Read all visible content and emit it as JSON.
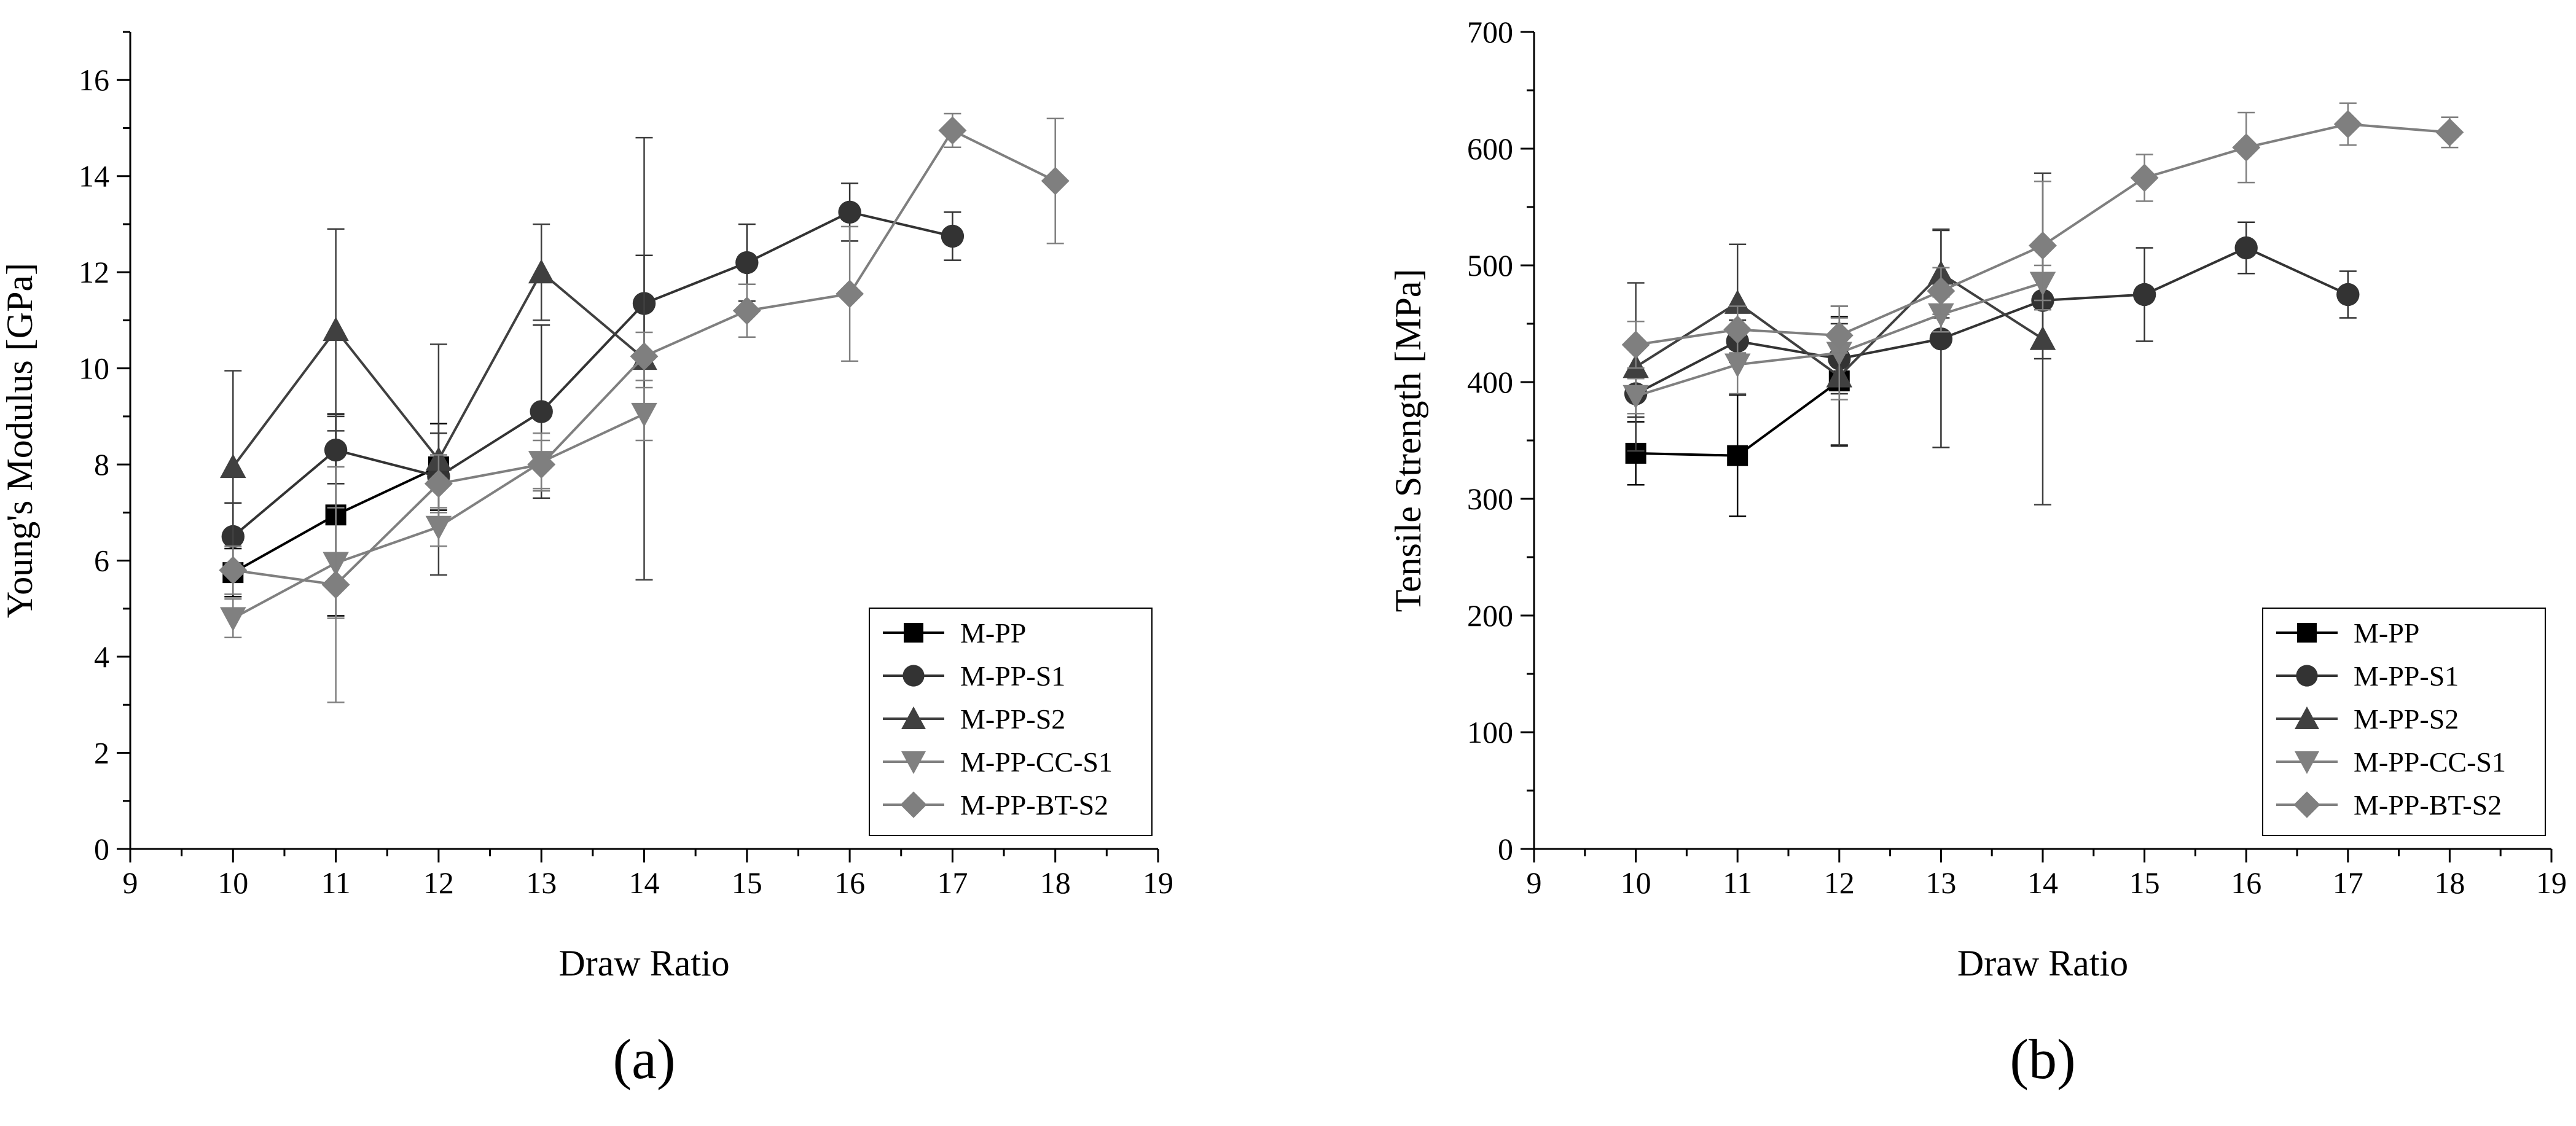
{
  "chart_data": [
    {
      "type": "line",
      "panel_label": "(a)",
      "xlabel": "Draw Ratio",
      "ylabel": "Young's Modulus [GPa]",
      "xlim": [
        9,
        19
      ],
      "ylim": [
        0,
        17
      ],
      "xticks": [
        9,
        10,
        11,
        12,
        13,
        14,
        15,
        16,
        17,
        18,
        19
      ],
      "yticks": [
        0,
        2,
        4,
        6,
        8,
        10,
        12,
        14,
        16
      ],
      "legend_position": "bottom-right",
      "series": [
        {
          "name": "M-PP",
          "marker": "square",
          "color": "#000000",
          "x": [
            10,
            11,
            12
          ],
          "values": [
            5.75,
            6.95,
            7.95
          ],
          "errors": [
            0.5,
            2.1,
            0.9
          ]
        },
        {
          "name": "M-PP-S1",
          "marker": "circle",
          "color": "#333333",
          "x": [
            10,
            11,
            12,
            13,
            14,
            15,
            16,
            17
          ],
          "values": [
            6.5,
            8.3,
            7.75,
            9.1,
            11.35,
            12.2,
            13.25,
            12.75
          ],
          "errors": [
            0.7,
            0.7,
            0.9,
            1.8,
            1.0,
            0.8,
            0.6,
            0.5
          ]
        },
        {
          "name": "M-PP-S2",
          "marker": "triangle-up",
          "color": "#404040",
          "x": [
            10,
            11,
            12,
            13,
            14
          ],
          "values": [
            7.95,
            10.8,
            8.1,
            12.0,
            10.2
          ],
          "errors": [
            2.0,
            2.1,
            2.4,
            1.0,
            4.6
          ]
        },
        {
          "name": "M-PP-CC-S1",
          "marker": "triangle-down",
          "color": "#808080",
          "x": [
            10,
            11,
            12,
            13,
            14
          ],
          "values": [
            4.8,
            5.95,
            6.7,
            8.05,
            9.05
          ],
          "errors": [
            0.4,
            1.15,
            0.4,
            0.6,
            0.55
          ]
        },
        {
          "name": "M-PP-BT-S2",
          "marker": "diamond",
          "color": "#7f7f7f",
          "x": [
            10,
            11,
            12,
            13,
            14,
            15,
            16,
            17,
            18
          ],
          "values": [
            5.8,
            5.5,
            7.6,
            8.0,
            10.25,
            11.2,
            11.55,
            14.95,
            13.9
          ],
          "errors": [
            0.5,
            2.45,
            0.6,
            0.5,
            0.5,
            0.55,
            1.4,
            0.35,
            1.3
          ]
        }
      ]
    },
    {
      "type": "line",
      "panel_label": "(b)",
      "xlabel": "Draw Ratio",
      "ylabel": "Tensile Strength [MPa]",
      "xlim": [
        9,
        19
      ],
      "ylim": [
        0,
        700
      ],
      "xticks": [
        9,
        10,
        11,
        12,
        13,
        14,
        15,
        16,
        17,
        18,
        19
      ],
      "yticks": [
        0,
        100,
        200,
        300,
        400,
        500,
        600,
        700
      ],
      "legend_position": "bottom-right",
      "series": [
        {
          "name": "M-PP",
          "marker": "square",
          "color": "#000000",
          "x": [
            10,
            11,
            12
          ],
          "values": [
            339,
            337,
            401
          ],
          "errors": [
            27,
            52,
            55
          ]
        },
        {
          "name": "M-PP-S1",
          "marker": "circle",
          "color": "#333333",
          "x": [
            10,
            11,
            12,
            13,
            14,
            15,
            16,
            17
          ],
          "values": [
            390,
            435,
            420,
            437,
            470,
            475,
            515,
            475
          ],
          "errors": [
            20,
            18,
            30,
            93,
            50,
            40,
            22,
            20
          ]
        },
        {
          "name": "M-PP-S2",
          "marker": "triangle-up",
          "color": "#404040",
          "x": [
            10,
            11,
            12,
            13,
            14
          ],
          "values": [
            413,
            468,
            405,
            493,
            437
          ],
          "errors": [
            72,
            50,
            60,
            38,
            142
          ]
        },
        {
          "name": "M-PP-CC-S1",
          "marker": "triangle-down",
          "color": "#808080",
          "x": [
            10,
            11,
            12,
            13,
            14
          ],
          "values": [
            388,
            415,
            425,
            458,
            485
          ],
          "errors": [
            15,
            25,
            40,
            15,
            15
          ]
        },
        {
          "name": "M-PP-BT-S2",
          "marker": "diamond",
          "color": "#7f7f7f",
          "x": [
            10,
            11,
            12,
            13,
            14,
            15,
            16,
            17,
            18
          ],
          "values": [
            432,
            445,
            440,
            478,
            517,
            575,
            601,
            621,
            614
          ],
          "errors": [
            20,
            20,
            15,
            20,
            55,
            20,
            30,
            18,
            13
          ]
        }
      ]
    }
  ]
}
